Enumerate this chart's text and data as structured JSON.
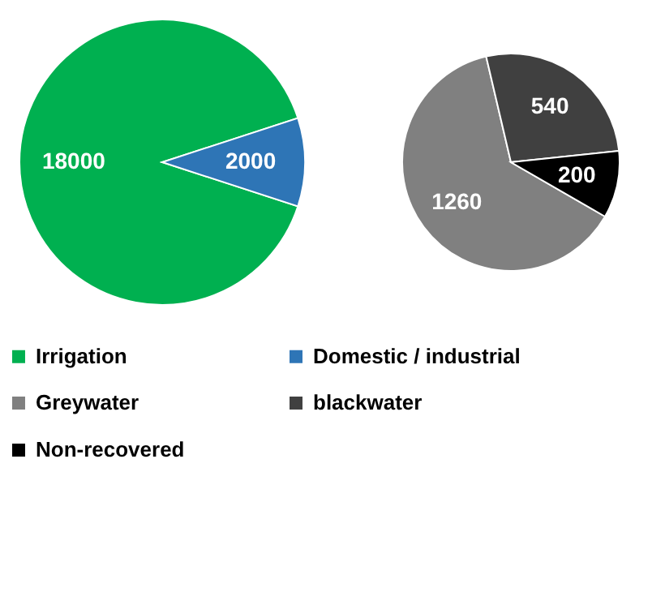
{
  "chart_data": [
    {
      "type": "pie",
      "categories": [
        "Irrigation",
        "Domestic / industrial"
      ],
      "values": [
        18000,
        2000
      ],
      "colors": [
        "#00b050",
        "#2e75b6"
      ],
      "data_labels": true,
      "legend": "bottom"
    },
    {
      "type": "pie",
      "categories": [
        "Greywater",
        "blackwater",
        "Non-recovered"
      ],
      "values": [
        1260,
        540,
        200
      ],
      "colors": [
        "#808080",
        "#404040",
        "#000000"
      ],
      "data_labels": true,
      "legend": "bottom"
    }
  ]
}
